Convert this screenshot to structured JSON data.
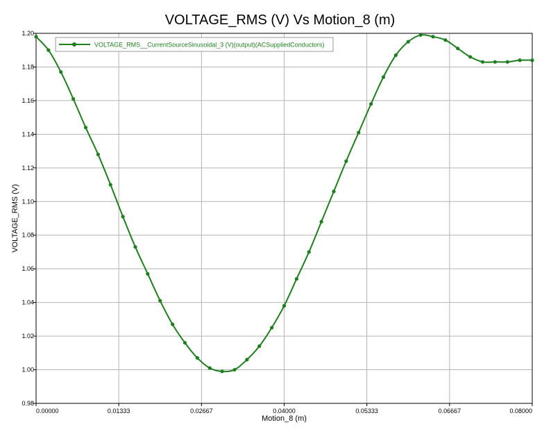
{
  "chart_data": {
    "type": "line",
    "title": "VOLTAGE_RMS (V) Vs Motion_8 (m)",
    "xlabel": "Motion_8 (m)",
    "ylabel": "VOLTAGE_RMS (V)",
    "xlim": [
      0,
      0.08
    ],
    "ylim": [
      0.98,
      1.2
    ],
    "x_ticks": [
      "0.00000",
      "0.01333",
      "0.02667",
      "0.04000",
      "0.05333",
      "0.06667",
      "0.08000"
    ],
    "y_ticks": [
      "0.98",
      "1.00",
      "1.02",
      "1.04",
      "1.06",
      "1.08",
      "1.10",
      "1.12",
      "1.14",
      "1.16",
      "1.18",
      "1.20"
    ],
    "grid": true,
    "legend_position": "top-left",
    "series": [
      {
        "name": "VOLTAGE_RMS__CurrentSourceSinusoidal_3 (V)(output)(ACSuppliedConductors)",
        "color": "#1e7d1e",
        "x": [
          0,
          0.002,
          0.004,
          0.006,
          0.008,
          0.01,
          0.012,
          0.014,
          0.016,
          0.018,
          0.02,
          0.022,
          0.024,
          0.026,
          0.028,
          0.03,
          0.032,
          0.034,
          0.036,
          0.038,
          0.04,
          0.042,
          0.044,
          0.046,
          0.048,
          0.05,
          0.052,
          0.054,
          0.056,
          0.058,
          0.06,
          0.062,
          0.064,
          0.066,
          0.068,
          0.07,
          0.072,
          0.074,
          0.076,
          0.078,
          0.08
        ],
        "y": [
          1.198,
          1.19,
          1.177,
          1.161,
          1.144,
          1.128,
          1.11,
          1.091,
          1.073,
          1.057,
          1.041,
          1.027,
          1.016,
          1.007,
          1.001,
          0.999,
          1.0,
          1.006,
          1.014,
          1.025,
          1.038,
          1.054,
          1.07,
          1.088,
          1.106,
          1.124,
          1.141,
          1.158,
          1.174,
          1.187,
          1.195,
          1.199,
          1.198,
          1.196,
          1.191,
          1.186,
          1.183,
          1.183,
          1.183,
          1.184,
          1.184
        ]
      }
    ]
  }
}
